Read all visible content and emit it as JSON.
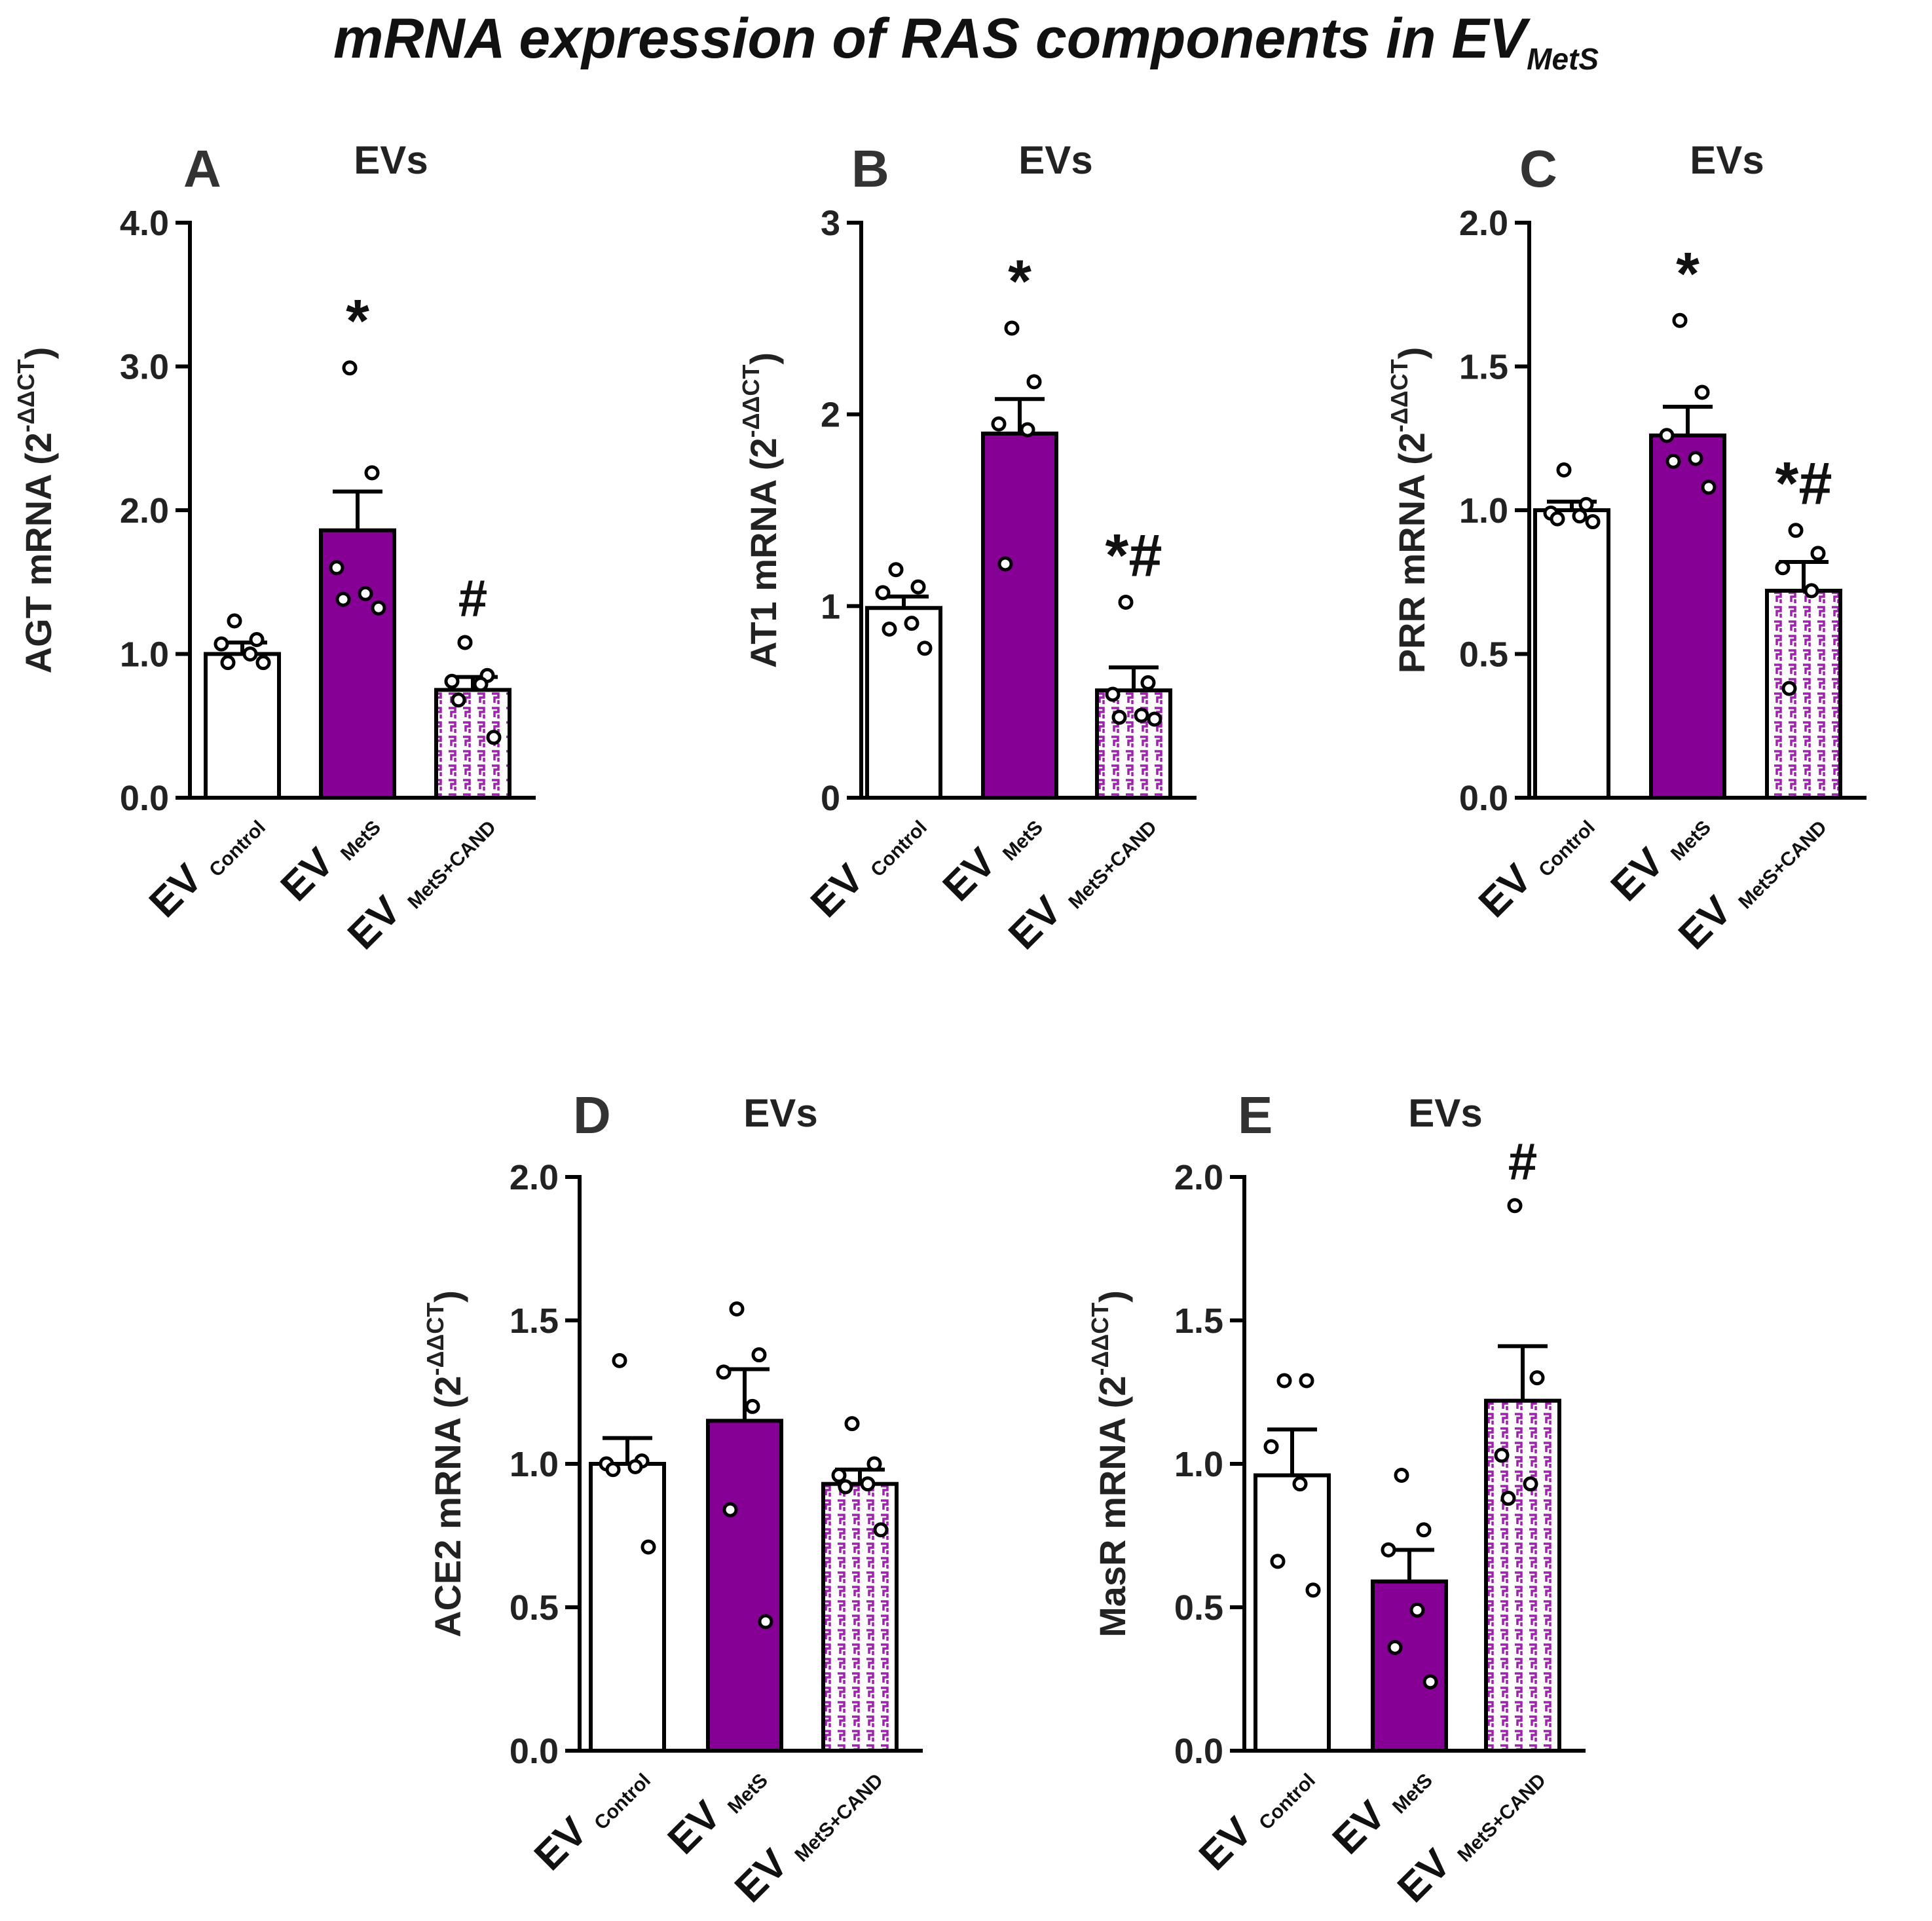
{
  "title": {
    "main": "mRNA expression of RAS components in EV",
    "sub": "MetS"
  },
  "colors": {
    "control": "#ffffff",
    "mets": "#860095",
    "cand_pattern": "#a020b0",
    "axis": "#000000",
    "text": "#222222"
  },
  "groups": [
    {
      "main": "EV",
      "sub": "Control"
    },
    {
      "main": "EV",
      "sub": "MetS"
    },
    {
      "main": "EV",
      "sub": "MetS+CAND"
    }
  ],
  "chart_data": [
    {
      "panel": "A",
      "title": "EVs",
      "type": "bar",
      "ylabel": "AGT mRNA",
      "ylabel_unit": {
        "base": "(2",
        "sup": "-ΔΔCT",
        "close": ")"
      },
      "ylim": [
        0,
        4
      ],
      "ticks": [
        0,
        1,
        2,
        3,
        4
      ],
      "tick_labels": [
        "0.0",
        "1.0",
        "2.0",
        "3.0",
        "4.0"
      ],
      "categories": [
        "EV Control",
        "EV MetS",
        "EV MetS+CAND"
      ],
      "values": [
        1.0,
        1.86,
        0.75
      ],
      "errors": [
        0.08,
        0.27,
        0.09
      ],
      "points": [
        [
          1.23,
          1.1,
          1.07,
          1.0,
          0.94,
          0.94
        ],
        [
          2.99,
          2.26,
          1.6,
          1.42,
          1.38,
          1.32
        ],
        [
          1.08,
          0.85,
          0.81,
          0.79,
          0.68,
          0.42
        ]
      ],
      "annotations": [
        "",
        "*",
        "#"
      ],
      "grid": false
    },
    {
      "panel": "B",
      "title": "EVs",
      "type": "bar",
      "ylabel": "AT1 mRNA",
      "ylabel_unit": {
        "base": "(2",
        "sup": "-ΔΔCT",
        "close": ")"
      },
      "ylim": [
        0,
        3
      ],
      "ticks": [
        0,
        1,
        2,
        3
      ],
      "tick_labels": [
        "0",
        "1",
        "2",
        "3"
      ],
      "categories": [
        "EV Control",
        "EV MetS",
        "EV MetS+CAND"
      ],
      "values": [
        0.99,
        1.9,
        0.56
      ],
      "errors": [
        0.06,
        0.18,
        0.12
      ],
      "points": [
        [
          1.19,
          1.1,
          1.07,
          0.91,
          0.88,
          0.78
        ],
        [
          2.45,
          2.17,
          1.95,
          1.92,
          1.22
        ],
        [
          1.02,
          0.6,
          0.54,
          0.43,
          0.42,
          0.41
        ]
      ],
      "annotations": [
        "",
        "*",
        "*#"
      ],
      "grid": false
    },
    {
      "panel": "C",
      "title": "EVs",
      "type": "bar",
      "ylabel": "PRR mRNA",
      "ylabel_unit": {
        "base": "(2",
        "sup": "-ΔΔCT",
        "close": ")"
      },
      "ylim": [
        0,
        2
      ],
      "ticks": [
        0,
        0.5,
        1,
        1.5,
        2
      ],
      "tick_labels": [
        "0.0",
        "0.5",
        "1.0",
        "1.5",
        "2.0"
      ],
      "categories": [
        "EV Control",
        "EV MetS",
        "EV MetS+CAND"
      ],
      "values": [
        1.0,
        1.26,
        0.72
      ],
      "errors": [
        0.03,
        0.1,
        0.1
      ],
      "points": [
        [
          1.14,
          1.02,
          0.99,
          0.98,
          0.97,
          0.96
        ],
        [
          1.66,
          1.41,
          1.26,
          1.18,
          1.17,
          1.08
        ],
        [
          0.93,
          0.85,
          0.8,
          0.72,
          0.38
        ]
      ],
      "annotations": [
        "",
        "*",
        "*#"
      ],
      "grid": false
    },
    {
      "panel": "D",
      "title": "EVs",
      "type": "bar",
      "ylabel": "ACE2 mRNA",
      "ylabel_unit": {
        "base": "(2",
        "sup": "-ΔΔCT",
        "close": ")"
      },
      "ylim": [
        0,
        2
      ],
      "ticks": [
        0,
        0.5,
        1,
        1.5,
        2
      ],
      "tick_labels": [
        "0.0",
        "0.5",
        "1.0",
        "1.5",
        "2.0"
      ],
      "categories": [
        "EV Control",
        "EV MetS",
        "EV MetS+CAND"
      ],
      "values": [
        1.0,
        1.15,
        0.93
      ],
      "errors": [
        0.09,
        0.18,
        0.05
      ],
      "points": [
        [
          1.36,
          1.01,
          1.0,
          0.99,
          0.98,
          0.71
        ],
        [
          1.54,
          1.38,
          1.32,
          1.2,
          0.84,
          0.45
        ],
        [
          1.14,
          1.0,
          0.96,
          0.93,
          0.92,
          0.77
        ]
      ],
      "annotations": [
        "",
        "",
        ""
      ],
      "grid": false
    },
    {
      "panel": "E",
      "title": "EVs",
      "type": "bar",
      "ylabel": "MasR mRNA",
      "ylabel_unit": {
        "base": "(2",
        "sup": "-ΔΔCT",
        "close": ")"
      },
      "ylim": [
        0,
        2
      ],
      "ticks": [
        0,
        0.5,
        1,
        1.5,
        2
      ],
      "tick_labels": [
        "0.0",
        "0.5",
        "1.0",
        "1.5",
        "2.0"
      ],
      "categories": [
        "EV Control",
        "EV MetS",
        "EV MetS+CAND"
      ],
      "values": [
        0.96,
        0.59,
        1.22
      ],
      "errors": [
        0.16,
        0.11,
        0.19
      ],
      "points": [
        [
          1.29,
          1.29,
          1.06,
          0.93,
          0.66,
          0.56
        ],
        [
          0.96,
          0.77,
          0.7,
          0.49,
          0.36,
          0.24
        ],
        [
          1.9,
          1.3,
          1.03,
          0.93,
          0.88
        ]
      ],
      "annotations": [
        "",
        "",
        "#"
      ],
      "grid": false
    }
  ]
}
